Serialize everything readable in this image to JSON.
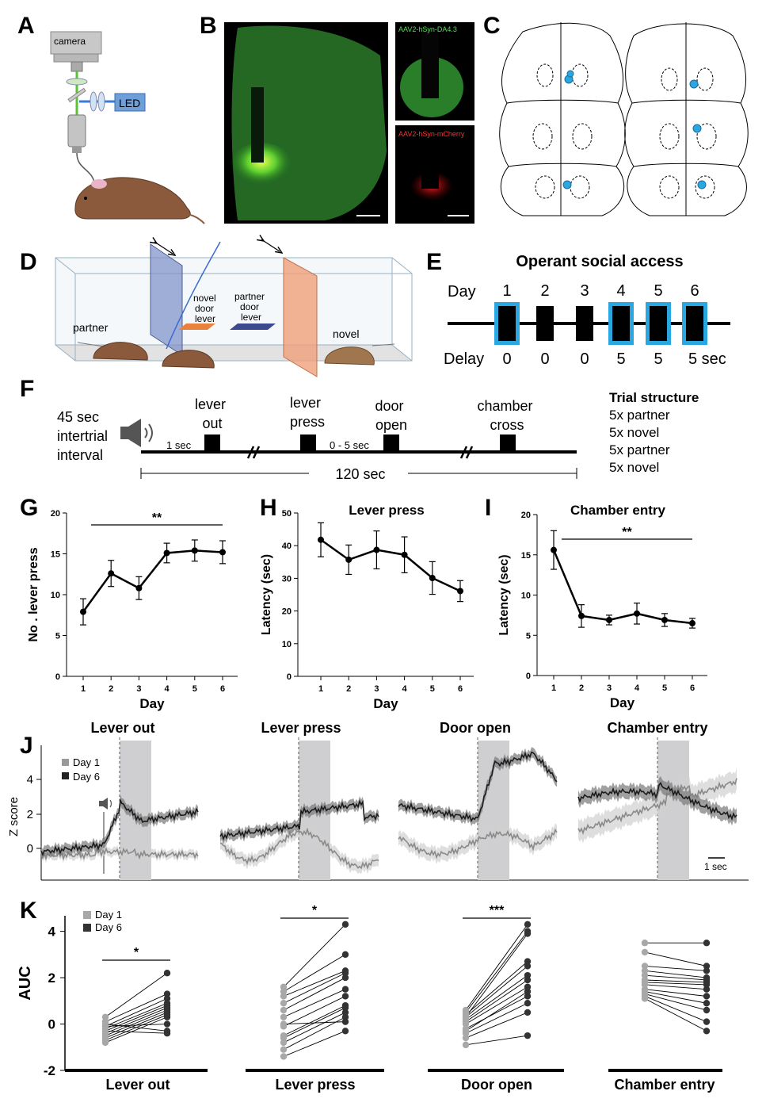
{
  "panel_labels": [
    "A",
    "B",
    "C",
    "D",
    "E",
    "F",
    "G",
    "H",
    "I",
    "J",
    "K"
  ],
  "panelA": {
    "camera": "camera",
    "led": "LED"
  },
  "panelB": {
    "label_green": "AAV2-hSyn-DA4.3",
    "label_red": "AAV2-hSyn-mCherry"
  },
  "panelD": {
    "partner": "partner",
    "novel": "novel",
    "novel_lever": [
      "novel",
      "door",
      "lever"
    ],
    "partner_lever": [
      "partner",
      "door",
      "lever"
    ]
  },
  "panelE": {
    "title": "Operant social access",
    "day_label": "Day",
    "days": [
      "1",
      "2",
      "3",
      "4",
      "5",
      "6"
    ],
    "delay_label": "Delay",
    "delays": [
      "0",
      "0",
      "0",
      "5",
      "5",
      "5 sec"
    ],
    "highlighted": [
      true,
      false,
      false,
      true,
      true,
      true
    ],
    "colors": {
      "highlight": "#2aa7e0",
      "block": "#000000"
    }
  },
  "panelF": {
    "iti": [
      "45 sec",
      "intertrial",
      "interval"
    ],
    "events": [
      {
        "lines": [
          "lever",
          "out"
        ]
      },
      {
        "lines": [
          "lever",
          "press"
        ]
      },
      {
        "lines": [
          "door",
          "open"
        ]
      },
      {
        "lines": [
          "chamber",
          "cross"
        ]
      }
    ],
    "gap1": "1 sec",
    "gap2": "0 - 5 sec",
    "total": "120 sec",
    "trial_title": "Trial structure",
    "trial_items": [
      "5x partner",
      "5x novel",
      "5x partner",
      "5x novel"
    ]
  },
  "panelJ": {
    "titles": [
      "Lever out",
      "Lever press",
      "Door open",
      "Chamber entry"
    ],
    "legend": [
      "Day 1",
      "Day 6"
    ],
    "ylabel": "Z score",
    "yticks": [
      "4",
      "2",
      "0"
    ],
    "scalebar": "1 sec"
  },
  "panelK": {
    "legend": [
      "Day 1",
      "Day 6"
    ],
    "ylabel": "AUC",
    "yticks": [
      "4",
      "2",
      "0",
      "-2"
    ],
    "categories": [
      "Lever out",
      "Lever press",
      "Door open",
      "Chamber entry"
    ],
    "sig": [
      "*",
      "*",
      "***",
      ""
    ]
  },
  "chart_data": [
    {
      "panel": "G",
      "type": "line",
      "title": "",
      "xlabel": "Day",
      "ylabel": "No . lever press",
      "x": [
        1,
        2,
        3,
        4,
        5,
        6
      ],
      "values": [
        7.9,
        12.6,
        10.8,
        15.1,
        15.4,
        15.2
      ],
      "errors": [
        1.6,
        1.6,
        1.4,
        1.2,
        1.3,
        1.4
      ],
      "ylim": [
        0,
        20
      ],
      "yticks": [
        0,
        5,
        10,
        15,
        20
      ],
      "sig": {
        "from": 1,
        "to": 6,
        "label": "**"
      }
    },
    {
      "panel": "H",
      "type": "line",
      "title": "Lever press",
      "xlabel": "Day",
      "ylabel": "Latency (sec)",
      "x": [
        1,
        2,
        3,
        4,
        5,
        6
      ],
      "values": [
        41.8,
        35.7,
        38.7,
        37.2,
        30.1,
        26.1
      ],
      "errors": [
        5.2,
        4.5,
        5.8,
        5.5,
        5.0,
        3.2
      ],
      "ylim": [
        0,
        50
      ],
      "yticks": [
        0,
        10,
        20,
        30,
        40,
        50
      ]
    },
    {
      "panel": "I",
      "type": "line",
      "title": "Chamber entry",
      "xlabel": "Day",
      "ylabel": "Latency (sec)",
      "x": [
        1,
        2,
        3,
        4,
        5,
        6
      ],
      "values": [
        15.6,
        7.4,
        6.9,
        7.7,
        6.9,
        6.5
      ],
      "errors": [
        2.4,
        1.4,
        0.6,
        1.3,
        0.8,
        0.6
      ],
      "ylim": [
        0,
        20
      ],
      "yticks": [
        0,
        5,
        10,
        15,
        20
      ],
      "sig": {
        "from": 1,
        "to": 6,
        "label": "**"
      }
    },
    {
      "panel": "K",
      "type": "scatter",
      "title": "",
      "ylabel": "AUC",
      "ylim": [
        -2,
        4.5
      ],
      "categories": [
        "Lever out",
        "Lever press",
        "Door open",
        "Chamber entry"
      ],
      "series": [
        {
          "name": "Day 1",
          "groups": [
            [
              0.3,
              0.1,
              -0.1,
              -0.2,
              -0.3,
              -0.4,
              -0.5,
              -0.6,
              -0.7,
              -0.8,
              0.0,
              -0.3,
              -0.1
            ],
            [
              1.6,
              1.4,
              1.2,
              0.9,
              0.6,
              0.3,
              -0.1,
              -0.5,
              -0.8,
              -1.1,
              -1.4,
              0.0,
              -0.6
            ],
            [
              0.6,
              0.5,
              0.4,
              0.3,
              0.2,
              0.1,
              0.0,
              -0.2,
              -0.4,
              -0.6,
              -0.9,
              0.3,
              -0.3
            ],
            [
              3.5,
              3.1,
              2.5,
              2.3,
              2.1,
              1.9,
              1.8,
              1.7,
              1.5,
              1.4,
              1.3,
              1.2,
              1.1
            ]
          ]
        },
        {
          "name": "Day 6",
          "groups": [
            [
              2.2,
              1.3,
              1.1,
              0.9,
              0.8,
              0.7,
              0.6,
              0.5,
              0.4,
              0.3,
              -0.3,
              -0.4,
              0.0
            ],
            [
              4.3,
              3.0,
              2.3,
              2.2,
              2.0,
              1.5,
              1.2,
              0.8,
              0.5,
              0.3,
              -0.3,
              0.1,
              0.7
            ],
            [
              4.3,
              4.0,
              2.7,
              2.5,
              2.1,
              1.9,
              1.6,
              1.2,
              0.9,
              0.5,
              -0.5,
              3.9,
              1.4
            ],
            [
              3.5,
              2.5,
              2.3,
              2.0,
              1.9,
              1.8,
              1.7,
              1.5,
              1.2,
              0.9,
              0.6,
              0.1,
              -0.3
            ]
          ]
        }
      ],
      "colors": {
        "day1": "#a8a8a8",
        "day6": "#333333"
      }
    }
  ]
}
